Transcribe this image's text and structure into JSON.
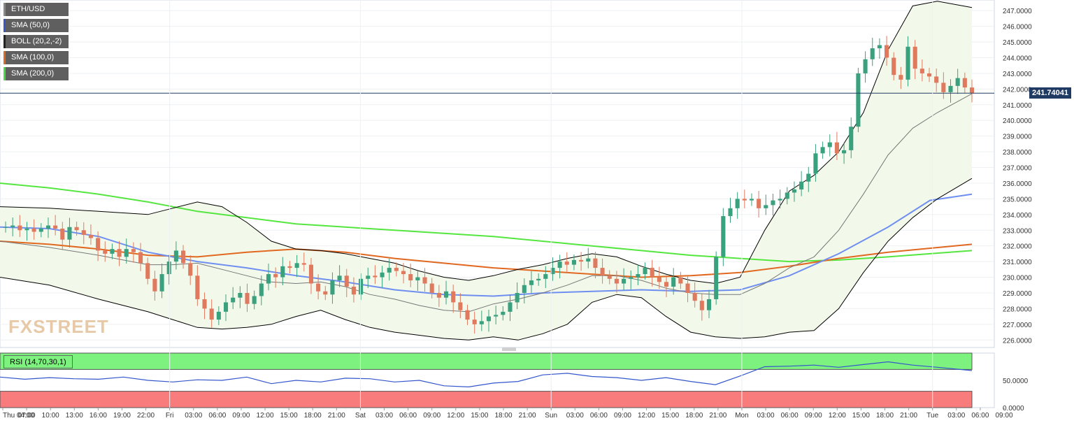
{
  "legend": [
    {
      "label": "ETH/USD",
      "color": "#888888"
    },
    {
      "label": "SMA (50,0)",
      "color": "#3a57c7"
    },
    {
      "label": "BOLL (20,2,-2)",
      "color": "#222222"
    },
    {
      "label": "SMA (100,0)",
      "color": "#e06820"
    },
    {
      "label": "SMA (200,0)",
      "color": "#44dd44"
    }
  ],
  "rsi_label": "RSI (14,70,30,1)",
  "last_price": "241.74041",
  "watermark": "FXSTREET",
  "colors": {
    "up": "#3aa17e",
    "down": "#e07a5f",
    "sma50": "#6f8ff0",
    "sma100": "#e06820",
    "sma200": "#55e640",
    "boll": "#000000",
    "bollMid": "#777777",
    "rsiLine": "#3456cc",
    "overbought": "#7ef27e",
    "oversold": "#f87c7c"
  },
  "chart_data": {
    "type": "candlestick",
    "price_axis": {
      "ticks": [
        "247.0000",
        "246.0000",
        "245.0000",
        "244.0000",
        "243.0000",
        "242.0000",
        "241.0000",
        "240.0000",
        "239.0000",
        "238.0000",
        "237.0000",
        "236.0000",
        "235.0000",
        "234.0000",
        "233.0000",
        "232.0000",
        "231.0000",
        "230.0000",
        "229.0000",
        "228.0000",
        "227.0000",
        "226.0000"
      ],
      "range": [
        225.7,
        247.5
      ]
    },
    "rsi_axis": {
      "ticks": [
        "50.0000",
        "0.0000"
      ],
      "range": [
        0,
        100
      ]
    },
    "time_axis": [
      "Thu 04:00",
      "07:00",
      "10:00",
      "13:00",
      "16:00",
      "19:00",
      "22:00",
      "Fri",
      "03:00",
      "06:00",
      "09:00",
      "12:00",
      "15:00",
      "18:00",
      "21:00",
      "Sat",
      "03:00",
      "06:00",
      "09:00",
      "12:00",
      "15:00",
      "18:00",
      "21:00",
      "Sun",
      "03:00",
      "06:00",
      "09:00",
      "12:00",
      "15:00",
      "18:00",
      "21:00",
      "Mon",
      "03:00",
      "06:00",
      "09:00",
      "12:00",
      "15:00",
      "18:00",
      "21:00",
      "Tue",
      "03:00",
      "06:00",
      "09:00"
    ],
    "candles_c": [
      233.2,
      233.3,
      233.0,
      233.1,
      232.9,
      233.1,
      233.3,
      233.1,
      232.4,
      233.2,
      233.0,
      232.7,
      232.5,
      231.7,
      231.5,
      231.8,
      231.3,
      231.8,
      231.6,
      230.9,
      229.9,
      229.1,
      230.2,
      231.0,
      231.7,
      230.9,
      230.1,
      228.6,
      228.0,
      227.3,
      227.8,
      228.4,
      228.7,
      229.0,
      228.3,
      228.8,
      229.6,
      230.2,
      230.0,
      230.7,
      230.6,
      230.9,
      230.8,
      229.6,
      229.1,
      228.9,
      229.8,
      230.1,
      229.4,
      228.9,
      229.9,
      230.1,
      230.0,
      230.3,
      230.6,
      230.4,
      230.2,
      229.8,
      230.0,
      229.6,
      229.0,
      228.7,
      229.1,
      228.4,
      227.9,
      227.3,
      227.0,
      227.2,
      227.5,
      227.6,
      227.8,
      228.4,
      229.0,
      229.5,
      229.8,
      229.9,
      230.2,
      230.6,
      231.0,
      230.8,
      231.1,
      231.0,
      231.2,
      230.6,
      230.1,
      229.9,
      229.6,
      229.9,
      230.0,
      230.2,
      230.6,
      230.0,
      229.7,
      229.4,
      230.0,
      229.6,
      229.0,
      228.5,
      227.9,
      228.6,
      231.3,
      233.9,
      234.4,
      235.0,
      234.9,
      235.0,
      234.4,
      234.6,
      234.9,
      235.0,
      235.4,
      235.6,
      236.1,
      236.6,
      237.9,
      238.3,
      238.6,
      237.9,
      238.1,
      239.6,
      243.0,
      243.9,
      244.6,
      244.8,
      244.0,
      242.9,
      242.6,
      244.7,
      243.3,
      243.0,
      242.8,
      242.4,
      241.8,
      242.2,
      242.7,
      242.1,
      241.74
    ],
    "sma50": [
      [
        0,
        233.2
      ],
      [
        20,
        233.1
      ],
      [
        40,
        232.6
      ],
      [
        60,
        231.6
      ],
      [
        80,
        231.0
      ],
      [
        100,
        230.6
      ],
      [
        120,
        230.1
      ],
      [
        140,
        229.7
      ],
      [
        160,
        229.2
      ],
      [
        180,
        228.9
      ],
      [
        200,
        228.8
      ],
      [
        220,
        229.0
      ],
      [
        240,
        229.1
      ],
      [
        260,
        229.2
      ],
      [
        280,
        229.1
      ],
      [
        300,
        229.2
      ],
      [
        320,
        230.1
      ],
      [
        340,
        231.5
      ],
      [
        360,
        233.2
      ],
      [
        377,
        234.9
      ],
      [
        394,
        235.3
      ]
    ],
    "sma100": [
      [
        0,
        232.3
      ],
      [
        20,
        232.1
      ],
      [
        40,
        231.8
      ],
      [
        60,
        231.4
      ],
      [
        80,
        231.3
      ],
      [
        100,
        231.6
      ],
      [
        120,
        231.8
      ],
      [
        140,
        231.6
      ],
      [
        160,
        231.2
      ],
      [
        180,
        230.9
      ],
      [
        200,
        230.6
      ],
      [
        220,
        230.4
      ],
      [
        240,
        230.2
      ],
      [
        260,
        230.0
      ],
      [
        280,
        230.1
      ],
      [
        300,
        230.3
      ],
      [
        320,
        230.7
      ],
      [
        340,
        231.2
      ],
      [
        360,
        231.6
      ],
      [
        394,
        232.1
      ]
    ],
    "sma200": [
      [
        0,
        236.0
      ],
      [
        20,
        235.7
      ],
      [
        40,
        235.3
      ],
      [
        60,
        234.8
      ],
      [
        80,
        234.2
      ],
      [
        100,
        233.8
      ],
      [
        120,
        233.4
      ],
      [
        140,
        233.2
      ],
      [
        160,
        233.0
      ],
      [
        180,
        232.8
      ],
      [
        200,
        232.6
      ],
      [
        220,
        232.3
      ],
      [
        240,
        232.0
      ],
      [
        260,
        231.7
      ],
      [
        280,
        231.4
      ],
      [
        300,
        231.2
      ],
      [
        320,
        231.0
      ],
      [
        340,
        231.1
      ],
      [
        360,
        231.3
      ],
      [
        394,
        231.7
      ]
    ],
    "boll_upper": [
      [
        0,
        234.5
      ],
      [
        20,
        234.4
      ],
      [
        40,
        234.2
      ],
      [
        60,
        234.0
      ],
      [
        70,
        234.4
      ],
      [
        80,
        234.8
      ],
      [
        90,
        234.5
      ],
      [
        100,
        233.5
      ],
      [
        110,
        232.3
      ],
      [
        120,
        231.8
      ],
      [
        130,
        231.7
      ],
      [
        140,
        231.5
      ],
      [
        150,
        231.2
      ],
      [
        160,
        230.9
      ],
      [
        170,
        230.4
      ],
      [
        180,
        230.0
      ],
      [
        190,
        229.8
      ],
      [
        200,
        230.1
      ],
      [
        210,
        230.5
      ],
      [
        220,
        230.8
      ],
      [
        230,
        231.2
      ],
      [
        240,
        231.5
      ],
      [
        250,
        231.3
      ],
      [
        260,
        230.7
      ],
      [
        270,
        230.2
      ],
      [
        280,
        229.8
      ],
      [
        290,
        229.6
      ],
      [
        300,
        230.0
      ],
      [
        310,
        233.0
      ],
      [
        320,
        235.5
      ],
      [
        330,
        236.5
      ],
      [
        340,
        238.0
      ],
      [
        350,
        240.5
      ],
      [
        360,
        244.5
      ],
      [
        370,
        247.3
      ],
      [
        380,
        247.6
      ],
      [
        394,
        247.2
      ]
    ],
    "boll_lower": [
      [
        0,
        230.0
      ],
      [
        20,
        229.5
      ],
      [
        40,
        228.6
      ],
      [
        60,
        227.8
      ],
      [
        70,
        227.3
      ],
      [
        80,
        226.8
      ],
      [
        90,
        226.7
      ],
      [
        100,
        226.8
      ],
      [
        110,
        227.0
      ],
      [
        120,
        227.5
      ],
      [
        130,
        227.9
      ],
      [
        140,
        227.3
      ],
      [
        150,
        226.8
      ],
      [
        160,
        226.5
      ],
      [
        170,
        226.3
      ],
      [
        180,
        226.1
      ],
      [
        190,
        226.0
      ],
      [
        200,
        226.2
      ],
      [
        210,
        226.0
      ],
      [
        220,
        226.4
      ],
      [
        230,
        227.0
      ],
      [
        240,
        228.4
      ],
      [
        250,
        228.9
      ],
      [
        260,
        228.7
      ],
      [
        270,
        227.5
      ],
      [
        280,
        226.5
      ],
      [
        290,
        226.2
      ],
      [
        300,
        226.1
      ],
      [
        310,
        226.2
      ],
      [
        320,
        226.5
      ],
      [
        330,
        226.6
      ],
      [
        340,
        228.0
      ],
      [
        350,
        230.3
      ],
      [
        360,
        232.3
      ],
      [
        370,
        233.8
      ],
      [
        380,
        235.0
      ],
      [
        394,
        236.3
      ]
    ],
    "boll_mid": [
      [
        0,
        232.3
      ],
      [
        20,
        231.9
      ],
      [
        40,
        231.4
      ],
      [
        60,
        230.8
      ],
      [
        70,
        230.8
      ],
      [
        80,
        230.9
      ],
      [
        90,
        230.5
      ],
      [
        100,
        230.1
      ],
      [
        110,
        229.7
      ],
      [
        120,
        229.6
      ],
      [
        130,
        229.7
      ],
      [
        140,
        229.4
      ],
      [
        150,
        228.9
      ],
      [
        160,
        228.6
      ],
      [
        170,
        228.2
      ],
      [
        180,
        227.9
      ],
      [
        190,
        227.8
      ],
      [
        200,
        228.3
      ],
      [
        210,
        228.6
      ],
      [
        220,
        229.0
      ],
      [
        230,
        229.5
      ],
      [
        240,
        230.1
      ],
      [
        250,
        230.1
      ],
      [
        260,
        229.8
      ],
      [
        270,
        229.3
      ],
      [
        280,
        229.0
      ],
      [
        290,
        228.9
      ],
      [
        300,
        228.9
      ],
      [
        310,
        229.6
      ],
      [
        320,
        230.6
      ],
      [
        330,
        231.3
      ],
      [
        340,
        233.0
      ],
      [
        350,
        235.3
      ],
      [
        360,
        237.8
      ],
      [
        370,
        239.5
      ],
      [
        380,
        240.5
      ],
      [
        394,
        241.7
      ]
    ],
    "rsi": [
      [
        0,
        56
      ],
      [
        10,
        52
      ],
      [
        20,
        55
      ],
      [
        30,
        53
      ],
      [
        40,
        52
      ],
      [
        50,
        56
      ],
      [
        60,
        50
      ],
      [
        70,
        47
      ],
      [
        80,
        51
      ],
      [
        90,
        50
      ],
      [
        100,
        56
      ],
      [
        110,
        44
      ],
      [
        120,
        50
      ],
      [
        130,
        47
      ],
      [
        140,
        54
      ],
      [
        150,
        53
      ],
      [
        160,
        47
      ],
      [
        170,
        50
      ],
      [
        180,
        40
      ],
      [
        190,
        38
      ],
      [
        200,
        45
      ],
      [
        210,
        48
      ],
      [
        220,
        60
      ],
      [
        230,
        63
      ],
      [
        240,
        57
      ],
      [
        250,
        55
      ],
      [
        260,
        50
      ],
      [
        270,
        55
      ],
      [
        280,
        48
      ],
      [
        290,
        42
      ],
      [
        300,
        58
      ],
      [
        310,
        75
      ],
      [
        320,
        76
      ],
      [
        330,
        78
      ],
      [
        340,
        74
      ],
      [
        350,
        79
      ],
      [
        360,
        84
      ],
      [
        370,
        78
      ],
      [
        380,
        74
      ],
      [
        394,
        68
      ]
    ]
  }
}
